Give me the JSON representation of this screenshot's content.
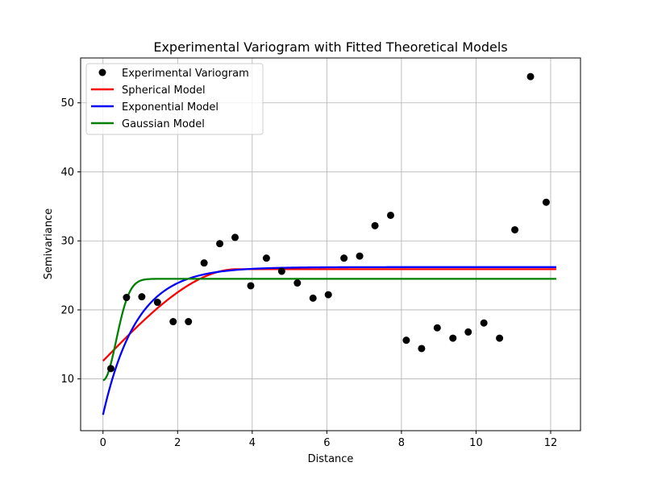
{
  "chart_data": {
    "type": "scatter",
    "title": "Experimental Variogram with Fitted Theoretical Models",
    "xlabel": "Distance",
    "ylabel": "Semivariance",
    "xlim": [
      -0.6,
      12.8
    ],
    "ylim": [
      2.5,
      56.5
    ],
    "xticks": [
      0,
      2,
      4,
      6,
      8,
      10,
      12
    ],
    "yticks": [
      10,
      20,
      30,
      40,
      50
    ],
    "grid": true,
    "legend_position": "upper-left",
    "scatter_series": {
      "name": "Experimental Variogram",
      "color": "#000000",
      "x": [
        0.21,
        0.63,
        1.04,
        1.46,
        1.88,
        2.29,
        2.71,
        3.13,
        3.54,
        3.96,
        4.38,
        4.79,
        5.21,
        5.63,
        6.04,
        6.46,
        6.88,
        7.29,
        7.71,
        8.13,
        8.54,
        8.96,
        9.38,
        9.79,
        10.21,
        10.63,
        11.04,
        11.46,
        11.88
      ],
      "y": [
        11.5,
        21.8,
        21.9,
        21.1,
        18.3,
        18.3,
        26.8,
        29.6,
        30.5,
        23.5,
        27.5,
        25.6,
        23.9,
        21.7,
        22.2,
        27.5,
        27.8,
        32.2,
        33.7,
        15.6,
        14.4,
        17.4,
        15.9,
        16.8,
        18.1,
        15.9,
        31.6,
        53.8,
        35.6
      ]
    },
    "model_series": [
      {
        "name": "Spherical Model",
        "color": "#ff0000",
        "model": "spherical",
        "nugget": 12.6,
        "sill": 25.9,
        "range": 3.6,
        "x_start": 0,
        "x_end": 12.15
      },
      {
        "name": "Exponential Model",
        "color": "#0000ff",
        "model": "exponential",
        "nugget": 4.8,
        "sill": 26.2,
        "range": 0.9,
        "x_start": 0,
        "x_end": 12.15
      },
      {
        "name": "Gaussian Model",
        "color": "#008000",
        "model": "gaussian",
        "nugget": 9.8,
        "sill": 24.5,
        "range": 0.5,
        "x_start": 0,
        "x_end": 12.15
      }
    ]
  }
}
